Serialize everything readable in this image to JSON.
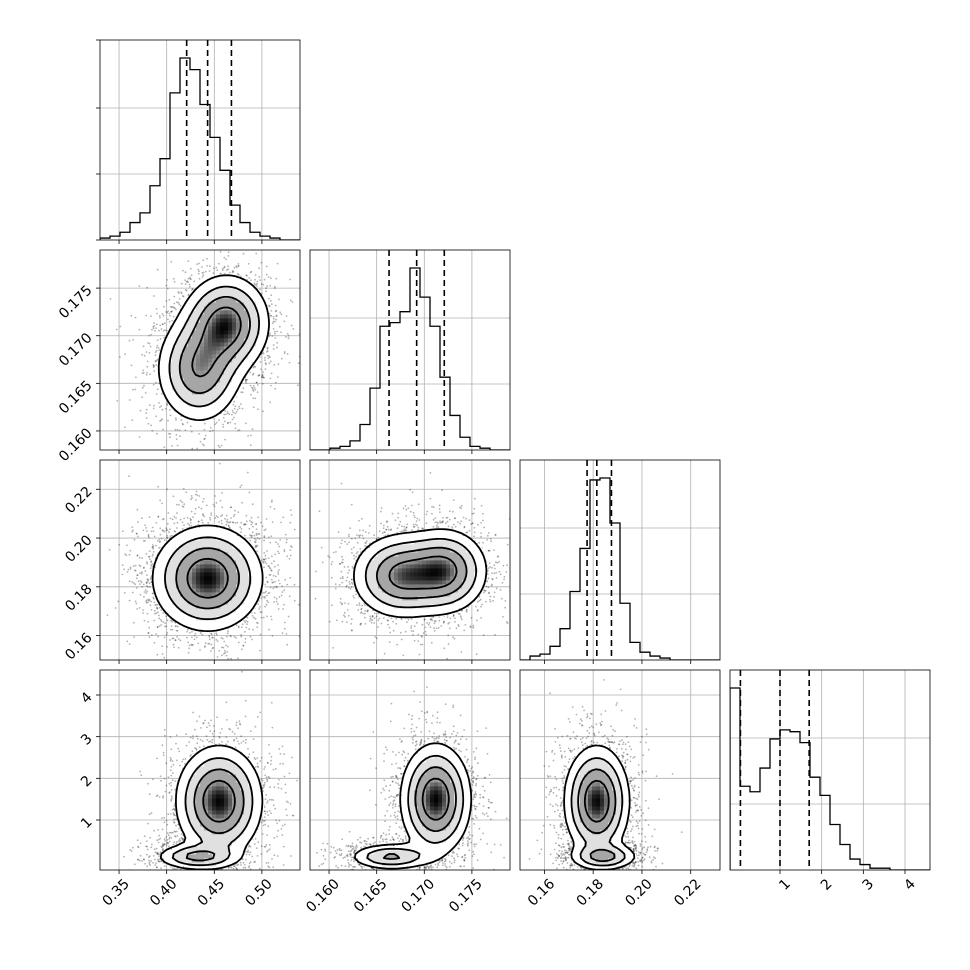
{
  "chart_data": {
    "type": "corner",
    "grid": true,
    "parameters": [
      {
        "range": [
          0.33,
          0.54
        ],
        "ticks": [
          0.35,
          0.4,
          0.45,
          0.5
        ],
        "tick_labels": [
          "0.35",
          "0.40",
          "0.45",
          "0.50"
        ],
        "quantiles": [
          0.421,
          0.443,
          0.468
        ]
      },
      {
        "range": [
          0.158,
          0.179
        ],
        "ticks": [
          0.16,
          0.165,
          0.17,
          0.175
        ],
        "tick_labels": [
          "0.160",
          "0.165",
          "0.170",
          "0.175"
        ],
        "quantiles": [
          0.1663,
          0.1692,
          0.1721
        ]
      },
      {
        "range": [
          0.15,
          0.232
        ],
        "ticks": [
          0.16,
          0.18,
          0.2,
          0.22
        ],
        "tick_labels": [
          "0.16",
          "0.18",
          "0.20",
          "0.22"
        ],
        "quantiles": [
          0.1775,
          0.1815,
          0.1875
        ]
      },
      {
        "range": [
          -0.2,
          4.6
        ],
        "ticks": [
          1,
          2,
          3,
          4
        ],
        "tick_labels": [
          "1",
          "2",
          "3",
          "4"
        ],
        "quantiles": [
          0.05,
          1.0,
          1.7
        ]
      }
    ],
    "histograms": [
      {
        "bins": 20,
        "counts": [
          1,
          2,
          4,
          9,
          14,
          28,
          42,
          76,
          94,
          88,
          70,
          53,
          36,
          18,
          9,
          4,
          2,
          1,
          0,
          0
        ]
      },
      {
        "bins": 20,
        "counts": [
          0,
          0,
          1,
          2,
          5,
          14,
          34,
          68,
          70,
          76,
          100,
          84,
          68,
          40,
          19,
          7,
          2,
          1,
          0,
          0
        ]
      },
      {
        "bins": 20,
        "counts": [
          0,
          2,
          3,
          7,
          16,
          35,
          57,
          92,
          93,
          70,
          29,
          9,
          4,
          2,
          1,
          0,
          0,
          0,
          0,
          0
        ]
      },
      {
        "bins": 20,
        "counts": [
          100,
          46,
          43,
          56,
          72,
          77,
          76,
          70,
          51,
          41,
          25,
          14,
          6,
          3,
          1,
          1,
          0,
          0,
          0,
          0
        ]
      }
    ],
    "pairs": [
      {
        "row": 1,
        "col": 0,
        "blobs": [
          {
            "cx": 0.434,
            "cy": 0.1665,
            "sx": 0.022,
            "sy": 0.0028,
            "w": 0.45
          },
          {
            "cx": 0.463,
            "cy": 0.1713,
            "sx": 0.022,
            "sy": 0.0025,
            "w": 0.55
          }
        ]
      },
      {
        "row": 2,
        "col": 0,
        "blobs": [
          {
            "cx": 0.443,
            "cy": 0.1835,
            "sx": 0.028,
            "sy": 0.0105,
            "w": 1.0
          }
        ]
      },
      {
        "row": 2,
        "col": 1,
        "blobs": [
          {
            "cx": 0.1675,
            "cy": 0.1845,
            "sx": 0.0025,
            "sy": 0.0085,
            "w": 0.5
          },
          {
            "cx": 0.1722,
            "cy": 0.1865,
            "sx": 0.0022,
            "sy": 0.0085,
            "w": 0.5
          }
        ]
      },
      {
        "row": 3,
        "col": 0,
        "blobs": [
          {
            "cx": 0.432,
            "cy": 0.12,
            "sx": 0.022,
            "sy": 0.16,
            "w": 0.35
          },
          {
            "cx": 0.455,
            "cy": 1.45,
            "sx": 0.022,
            "sy": 0.65,
            "w": 0.65
          }
        ]
      },
      {
        "row": 3,
        "col": 1,
        "blobs": [
          {
            "cx": 0.1665,
            "cy": 0.12,
            "sx": 0.0022,
            "sy": 0.16,
            "w": 0.35
          },
          {
            "cx": 0.1712,
            "cy": 1.5,
            "sx": 0.0018,
            "sy": 0.65,
            "w": 0.65
          }
        ]
      },
      {
        "row": 3,
        "col": 2,
        "blobs": [
          {
            "cx": 0.1845,
            "cy": 0.12,
            "sx": 0.007,
            "sy": 0.16,
            "w": 0.35
          },
          {
            "cx": 0.1815,
            "cy": 1.45,
            "sx": 0.0065,
            "sy": 0.65,
            "w": 0.65
          }
        ]
      }
    ]
  }
}
